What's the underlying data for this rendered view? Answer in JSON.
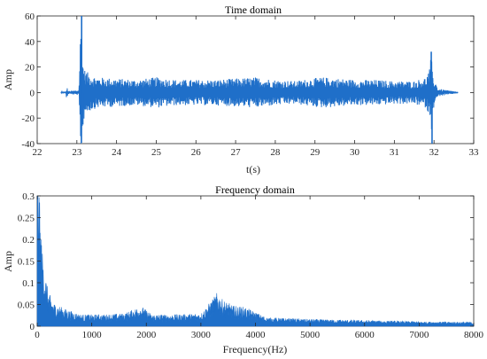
{
  "chart_data": [
    {
      "type": "line",
      "title": "Time domain",
      "xlabel": "t(s)",
      "ylabel": "Amp",
      "xlim": [
        22,
        33
      ],
      "ylim": [
        -40,
        60
      ],
      "xticks": [
        "22",
        "23",
        "24",
        "25",
        "26",
        "27",
        "28",
        "29",
        "30",
        "31",
        "32",
        "33"
      ],
      "yticks": [
        "-40",
        "-20",
        "0",
        "20",
        "40",
        "60"
      ],
      "grid": false,
      "series_color": "#1f6fc9",
      "series": [
        {
          "x": [
            22.6,
            23.05,
            23.1,
            23.12,
            23.15,
            23.2,
            23.3,
            23.5,
            24.0,
            24.5,
            25.0,
            25.5,
            26.0,
            26.5,
            27.0,
            27.5,
            28.0,
            28.5,
            28.9,
            29.2,
            29.6,
            30.0,
            30.5,
            31.0,
            31.5,
            31.8,
            31.9,
            31.93,
            31.96,
            32.1,
            32.6
          ],
          "envelope": [
            0.5,
            2,
            60,
            50,
            25,
            18,
            15,
            12,
            11,
            10,
            12,
            10,
            10,
            10,
            11,
            12,
            10,
            9,
            11,
            12,
            11,
            10,
            10,
            9,
            9,
            12,
            20,
            32,
            15,
            3,
            0.5
          ],
          "spikes": [
            {
              "x": 23.12,
              "y": 60
            },
            {
              "x": 23.15,
              "y": -25
            },
            {
              "x": 31.93,
              "y": 32
            },
            {
              "x": 31.95,
              "y": -40
            }
          ]
        }
      ]
    },
    {
      "type": "line",
      "title": "Frequency domain",
      "xlabel": "Frequency(Hz)",
      "ylabel": "Amp",
      "xlim": [
        0,
        8000
      ],
      "ylim": [
        0,
        0.3
      ],
      "xticks": [
        "0",
        "1000",
        "2000",
        "3000",
        "4000",
        "5000",
        "6000",
        "7000",
        "8000"
      ],
      "yticks": [
        "0",
        "0.05",
        "0.1",
        "0.15",
        "0.2",
        "0.25",
        "0.3"
      ],
      "grid": false,
      "series_color": "#1f6fc9",
      "series": [
        {
          "x": [
            0,
            20,
            50,
            100,
            200,
            300,
            500,
            800,
            1200,
            1600,
            1900,
            2100,
            2500,
            3000,
            3200,
            3300,
            3400,
            3600,
            3800,
            4200,
            5000,
            6000,
            7000,
            8000
          ],
          "y": [
            0.29,
            0.27,
            0.2,
            0.12,
            0.06,
            0.04,
            0.03,
            0.02,
            0.02,
            0.022,
            0.035,
            0.02,
            0.02,
            0.022,
            0.045,
            0.058,
            0.045,
            0.035,
            0.033,
            0.015,
            0.012,
            0.01,
            0.008,
            0.007
          ]
        }
      ]
    }
  ]
}
